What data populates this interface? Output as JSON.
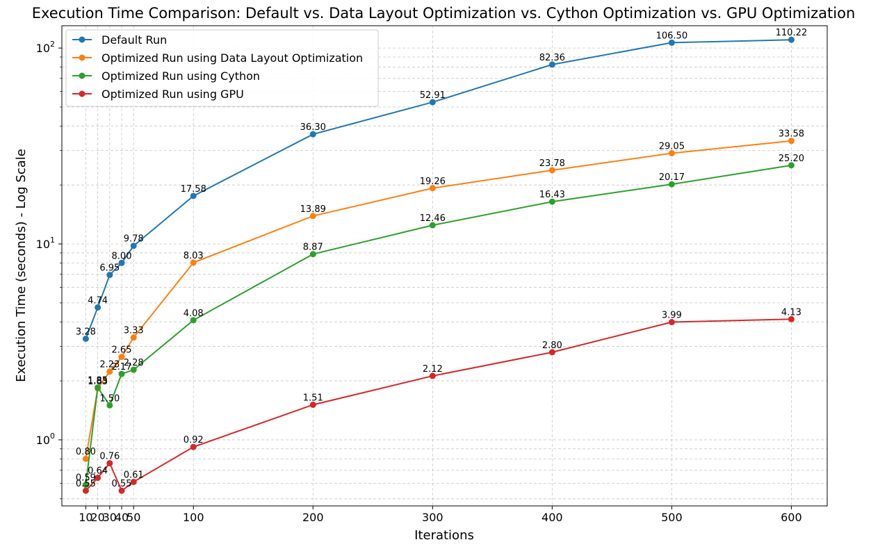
{
  "chart_data": {
    "type": "line",
    "title": "Execution Time Comparison: Default vs. Data Layout Optimization vs. Cython Optimization vs. GPU Optimization",
    "xlabel": "Iterations",
    "ylabel": "Execution Time (seconds) - Log Scale",
    "yscale": "log",
    "xlim": [
      -10,
      630
    ],
    "ylim": [
      0.46,
      130
    ],
    "x": [
      10,
      20,
      30,
      40,
      50,
      100,
      200,
      300,
      400,
      500,
      600
    ],
    "xticks": [
      "10",
      "20",
      "30",
      "40",
      "50",
      "100",
      "200",
      "300",
      "400",
      "500",
      "600"
    ],
    "yticks": [
      {
        "value": 1,
        "base": "10",
        "exp": "0"
      },
      {
        "value": 10,
        "base": "10",
        "exp": "1"
      },
      {
        "value": 100,
        "base": "10",
        "exp": "2"
      }
    ],
    "grid": true,
    "legend_position": "top-left",
    "series": [
      {
        "name": "Default Run",
        "color": "#1f77b4",
        "values": [
          3.28,
          4.74,
          6.95,
          8.0,
          9.78,
          17.58,
          36.3,
          52.91,
          82.36,
          106.5,
          110.22
        ],
        "labels": [
          "3.28",
          "4.74",
          "6.95",
          "8.00",
          "9.78",
          "17.58",
          "36.30",
          "52.91",
          "82.36",
          "106.50",
          "110.22"
        ]
      },
      {
        "name": "Optimized Run using Data Layout Optimization",
        "color": "#ff7f0e",
        "values": [
          0.8,
          1.83,
          2.23,
          2.65,
          3.33,
          8.03,
          13.89,
          19.26,
          23.78,
          29.05,
          33.58
        ],
        "labels": [
          "0.80",
          "1.83",
          "2.23",
          "2.65",
          "3.33",
          "8.03",
          "13.89",
          "19.26",
          "23.78",
          "29.05",
          "33.58"
        ]
      },
      {
        "name": "Optimized Run using Cython",
        "color": "#2ca02c",
        "values": [
          0.59,
          1.85,
          1.5,
          2.17,
          2.28,
          4.08,
          8.87,
          12.46,
          16.43,
          20.17,
          25.2
        ],
        "labels": [
          "0.59",
          "1.85",
          "1.50",
          "2.17",
          "2.28",
          "4.08",
          "8.87",
          "12.46",
          "16.43",
          "20.17",
          "25.20"
        ]
      },
      {
        "name": "Optimized Run using GPU",
        "color": "#d62728",
        "values": [
          0.55,
          0.64,
          0.76,
          0.55,
          0.61,
          0.92,
          1.51,
          2.12,
          2.8,
          3.99,
          4.13
        ],
        "labels": [
          "0.55",
          "0.64",
          "0.76",
          "0.55",
          "0.61",
          "0.92",
          "1.51",
          "2.12",
          "2.80",
          "3.99",
          "4.13"
        ]
      }
    ]
  }
}
